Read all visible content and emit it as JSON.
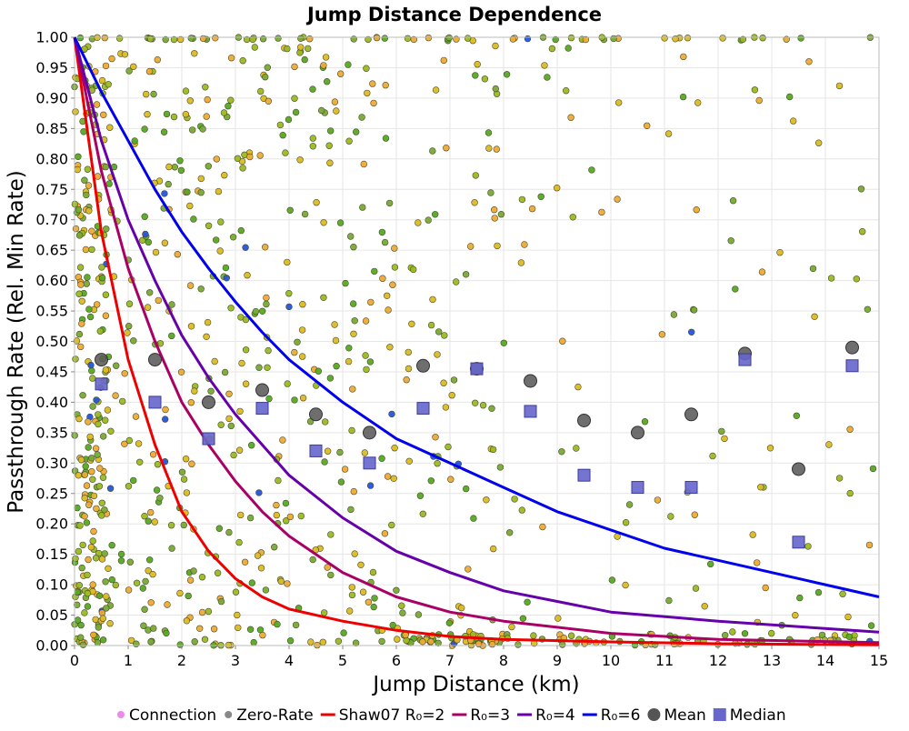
{
  "chart_data": {
    "type": "scatter",
    "title": "Jump Distance Dependence",
    "xlabel": "Jump Distance (km)",
    "ylabel": "Passthrough Rate (Rel. Min Rate)",
    "xlim": [
      0,
      15
    ],
    "ylim": [
      0,
      1
    ],
    "x_ticks": [
      "0",
      "1",
      "2",
      "3",
      "4",
      "5",
      "6",
      "7",
      "8",
      "9",
      "10",
      "11",
      "12",
      "13",
      "14",
      "15"
    ],
    "y_ticks": [
      "0.00",
      "0.05",
      "0.10",
      "0.15",
      "0.20",
      "0.25",
      "0.30",
      "0.35",
      "0.40",
      "0.45",
      "0.50",
      "0.55",
      "0.60",
      "0.65",
      "0.70",
      "0.75",
      "0.80",
      "0.85",
      "0.90",
      "0.95",
      "1.00"
    ],
    "grid": true,
    "legend_position": "bottom",
    "legend": [
      {
        "label": "Connection",
        "kind": "dot",
        "color": "#ee88ee"
      },
      {
        "label": "Zero-Rate",
        "kind": "dot",
        "color": "#888888"
      },
      {
        "label": "Shaw07 R₀=2",
        "kind": "line",
        "color": "#ee0000"
      },
      {
        "label": "R₀=3",
        "kind": "line",
        "color": "#aa0066"
      },
      {
        "label": "R₀=4",
        "kind": "line",
        "color": "#6600aa"
      },
      {
        "label": "R₀=6",
        "kind": "line",
        "color": "#0000ee"
      },
      {
        "label": "Mean",
        "kind": "circle",
        "color": "#555555"
      },
      {
        "label": "Median",
        "kind": "square",
        "color": "#6666cc"
      }
    ],
    "curves": [
      {
        "name": "Shaw07 R₀=2",
        "color": "#ee0000",
        "x": [
          0,
          0.5,
          1,
          1.5,
          2,
          2.5,
          3,
          3.5,
          4,
          5,
          6,
          7,
          8,
          10,
          12,
          15
        ],
        "y": [
          1.0,
          0.68,
          0.47,
          0.33,
          0.22,
          0.155,
          0.11,
          0.08,
          0.06,
          0.04,
          0.025,
          0.015,
          0.01,
          0.006,
          0.003,
          0.001
        ]
      },
      {
        "name": "R₀=3",
        "color": "#aa0066",
        "x": [
          0,
          0.5,
          1,
          1.5,
          2,
          2.5,
          3,
          3.5,
          4,
          5,
          6,
          7,
          8,
          10,
          12,
          15
        ],
        "y": [
          1.0,
          0.78,
          0.62,
          0.5,
          0.4,
          0.33,
          0.27,
          0.22,
          0.18,
          0.12,
          0.08,
          0.055,
          0.04,
          0.02,
          0.01,
          0.005
        ]
      },
      {
        "name": "R₀=4",
        "color": "#6600aa",
        "x": [
          0,
          0.5,
          1,
          1.5,
          2,
          2.5,
          3,
          3.5,
          4,
          5,
          6,
          7,
          8,
          10,
          12,
          15
        ],
        "y": [
          1.0,
          0.83,
          0.7,
          0.6,
          0.51,
          0.44,
          0.38,
          0.33,
          0.28,
          0.21,
          0.155,
          0.12,
          0.09,
          0.055,
          0.04,
          0.022
        ]
      },
      {
        "name": "R₀=6",
        "color": "#0000ee",
        "x": [
          0,
          0.5,
          1,
          1.5,
          2,
          2.5,
          3,
          3.5,
          4,
          5,
          6,
          7,
          8,
          9,
          10,
          11,
          12,
          13,
          14,
          15
        ],
        "y": [
          1.0,
          0.91,
          0.83,
          0.75,
          0.68,
          0.62,
          0.565,
          0.515,
          0.47,
          0.4,
          0.34,
          0.3,
          0.26,
          0.22,
          0.19,
          0.16,
          0.14,
          0.12,
          0.1,
          0.08
        ]
      }
    ],
    "mean": {
      "x": [
        0.5,
        1.5,
        2.5,
        3.5,
        4.5,
        5.5,
        6.5,
        7.5,
        8.5,
        9.5,
        10.5,
        11.5,
        12.5,
        13.5,
        14.5
      ],
      "y": [
        0.47,
        0.47,
        0.4,
        0.42,
        0.38,
        0.35,
        0.46,
        0.455,
        0.435,
        0.37,
        0.35,
        0.38,
        0.48,
        0.29,
        0.49
      ]
    },
    "median": {
      "x": [
        0.5,
        1.5,
        2.5,
        3.5,
        4.5,
        5.5,
        6.5,
        7.5,
        8.5,
        9.5,
        10.5,
        11.5,
        12.5,
        13.5,
        14.5
      ],
      "y": [
        0.43,
        0.4,
        0.34,
        0.39,
        0.32,
        0.3,
        0.39,
        0.455,
        0.385,
        0.28,
        0.26,
        0.26,
        0.47,
        0.17,
        0.46
      ]
    },
    "scatter_colors": [
      "#55aa22",
      "#99bb22",
      "#ddbb22",
      "#eeaa33",
      "#77aa33"
    ],
    "scatter_rare_color": "#2255dd"
  }
}
